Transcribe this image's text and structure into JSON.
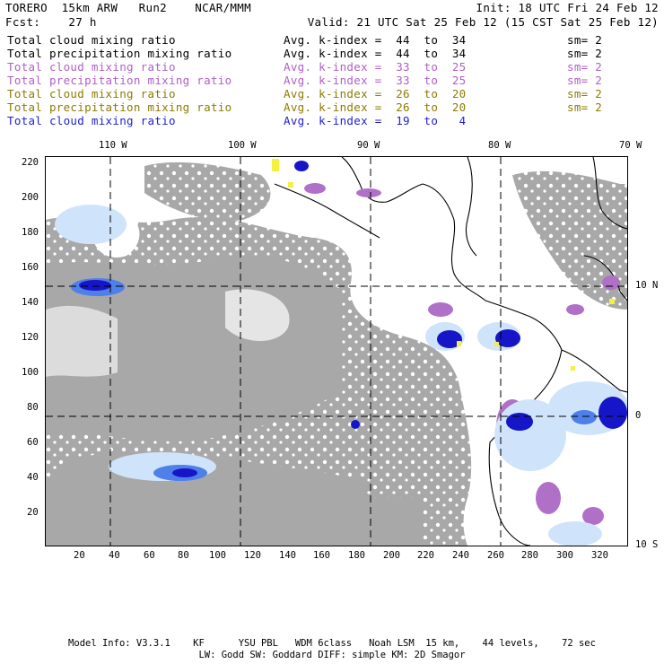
{
  "header": {
    "line1_left": "TORERO  15km ARW   Run2    NCAR/MMM",
    "line1_right": "Init: 18 UTC Fri 24 Feb 12",
    "line2_left": "Fcst:    27 h",
    "line2_right": "Valid: 21 UTC Sat 25 Feb 12 (15 CST Sat 25 Feb 12)"
  },
  "fields": [
    {
      "name": "Total cloud mixing ratio",
      "kindex": "Avg. k-index =  44  to  34",
      "sm": "sm= 2",
      "color": "#000000"
    },
    {
      "name": "Total precipitation mixing ratio",
      "kindex": "Avg. k-index =  44  to  34",
      "sm": "sm= 2",
      "color": "#000000"
    },
    {
      "name": "Total cloud mixing ratio",
      "kindex": "Avg. k-index =  33  to  25",
      "sm": "sm= 2",
      "color": "#b05fc8"
    },
    {
      "name": "Total precipitation mixing ratio",
      "kindex": "Avg. k-index =  33  to  25",
      "sm": "sm= 2",
      "color": "#b05fc8"
    },
    {
      "name": "Total cloud mixing ratio",
      "kindex": "Avg. k-index =  26  to  20",
      "sm": "sm= 2",
      "color": "#8a7c00"
    },
    {
      "name": "Total precipitation mixing ratio",
      "kindex": "Avg. k-index =  26  to  20",
      "sm": "sm= 2",
      "color": "#8a7c00"
    },
    {
      "name": "Total cloud mixing ratio",
      "kindex": "Avg. k-index =  19  to   4",
      "sm": "",
      "color": "#1c1cd8"
    }
  ],
  "map": {
    "lon_labels": [
      "110 W",
      "100 W",
      "90 W",
      "80 W",
      "70 W"
    ],
    "lat_labels": [
      "10 N",
      "0",
      "10 S"
    ],
    "y_ticks": [
      "220",
      "200",
      "180",
      "160",
      "140",
      "120",
      "100",
      "80",
      "60",
      "40",
      "20"
    ],
    "x_ticks": [
      "20",
      "40",
      "60",
      "80",
      "100",
      "120",
      "140",
      "160",
      "180",
      "200",
      "220",
      "240",
      "260",
      "280",
      "300",
      "320"
    ],
    "colors": {
      "cloud_gray": "#a8a8a8",
      "violet": "#b070c8",
      "light_blue": "#cfe4fb",
      "mid_blue": "#4f7fe8",
      "dark_blue": "#1616c8",
      "yellow": "#f4f040",
      "coast": "#000000"
    }
  },
  "footer": {
    "line1": "Model Info: V3.3.1    KF      YSU PBL   WDM 6class   Noah LSM  15 km,    44 levels,    72 sec",
    "line2": "LW: Godd SW: Goddard DIFF: simple KM: 2D Smagor"
  }
}
